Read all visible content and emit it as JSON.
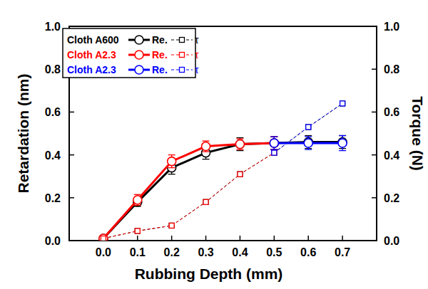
{
  "chart_data": {
    "type": "line",
    "x_label": "Rubbing Depth (mm)",
    "y_label": "Retardation (nm)",
    "y2_label": "Torque (N)",
    "x": [
      0,
      0.1,
      0.2,
      0.3,
      0.4,
      0.5,
      0.6,
      0.7
    ],
    "xlim": [
      -0.1,
      0.8
    ],
    "xticks": [
      {
        "value": 0,
        "label": "0.0"
      },
      {
        "value": 0.1,
        "label": "0.1"
      },
      {
        "value": 0.2,
        "label": "0.2"
      },
      {
        "value": 0.3,
        "label": "0.3"
      },
      {
        "value": 0.4,
        "label": "0.4"
      },
      {
        "value": 0.5,
        "label": "0.5"
      },
      {
        "value": 0.6,
        "label": "0.6"
      },
      {
        "value": 0.7,
        "label": "0.7"
      }
    ],
    "ylim": [
      0,
      1
    ],
    "yticks": [
      {
        "value": 0,
        "label": "0.0"
      },
      {
        "value": 0.2,
        "label": "0.2"
      },
      {
        "value": 0.4,
        "label": "0.4"
      },
      {
        "value": 0.6,
        "label": "0.6"
      },
      {
        "value": 0.8,
        "label": "0.8"
      },
      {
        "value": 1,
        "label": "1.0"
      }
    ],
    "y2lim": [
      0,
      1
    ],
    "y2ticks": [
      {
        "value": 0,
        "label": "0.0"
      },
      {
        "value": 0.2,
        "label": "0.2"
      },
      {
        "value": 0.4,
        "label": "0.4"
      },
      {
        "value": 0.6,
        "label": "0.6"
      },
      {
        "value": 0.8,
        "label": "0.8"
      },
      {
        "value": 1,
        "label": "1.0"
      }
    ],
    "legend": "upper left",
    "series": [
      {
        "cloth": "Cloth A600",
        "name": "Re.",
        "color": "#000000",
        "marker": "circle",
        "line_style": "solid",
        "values": [
          0.01,
          0.18,
          0.34,
          0.41,
          0.45,
          0.455,
          0.46,
          0.46
        ],
        "errors": [
          0.005,
          0.02,
          0.03,
          0.03,
          0.03,
          0.03,
          0.03,
          0.03
        ]
      },
      {
        "cloth": "Cloth A600",
        "name": "τ",
        "color": "#000000",
        "marker": "square",
        "line_style": "dashed",
        "axis": "y2",
        "values": [
          0.01,
          0.045,
          0.07,
          0.18,
          0.31,
          0.41,
          0.53,
          0.64
        ]
      },
      {
        "cloth": "Cloth A2.3",
        "name": "Re.",
        "color": "#ff0000",
        "marker": "circle",
        "line_style": "solid",
        "values": [
          0.01,
          0.19,
          0.37,
          0.44,
          0.45,
          0.455,
          null,
          null
        ],
        "errors": [
          0.005,
          0.025,
          0.03,
          0.025,
          0.025,
          0.03,
          null,
          null
        ]
      },
      {
        "cloth": "Cloth A2.3",
        "name": "τ",
        "color": "#ff0000",
        "marker": "square",
        "line_style": "dashed",
        "axis": "y2",
        "values": [
          0.01,
          0.045,
          0.07,
          0.18,
          0.31,
          0.41,
          null,
          null
        ]
      },
      {
        "cloth": "Cloth A2.3",
        "name": "Re.",
        "color": "#0000ff",
        "marker": "circle",
        "line_style": "solid",
        "values": [
          null,
          null,
          null,
          null,
          null,
          0.455,
          0.455,
          0.455
        ],
        "errors": [
          null,
          null,
          null,
          null,
          null,
          0.03,
          0.03,
          0.035
        ]
      },
      {
        "cloth": "Cloth A2.3",
        "name": "τ",
        "color": "#0000ff",
        "marker": "square",
        "line_style": "dashed",
        "axis": "y2",
        "values": [
          null,
          null,
          null,
          null,
          null,
          0.41,
          0.53,
          0.64
        ]
      }
    ]
  }
}
